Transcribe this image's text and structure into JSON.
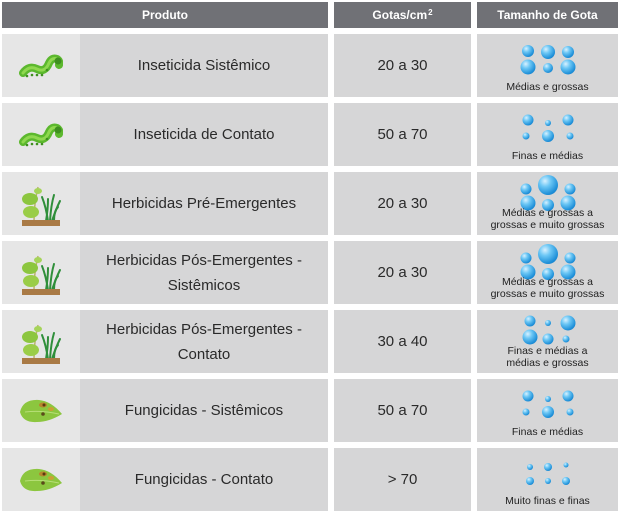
{
  "header": {
    "produto": "Produto",
    "gotas": "Gotas/cm",
    "gotas_sup": "2",
    "tamanho": "Tamanho de Gota"
  },
  "colors": {
    "header_bg": "#707176",
    "cell_bg": "#d6d6d7",
    "icon_bg": "#e6e6e6",
    "drop_blue": "#1e8fd8"
  },
  "rows": [
    {
      "icon": "caterpillar-icon",
      "produto": "Inseticida Sistêmico",
      "gotas": "20 a 30",
      "tamanho": "Médias e grossas",
      "drops": "medium-coarse"
    },
    {
      "icon": "caterpillar-icon",
      "produto": "Inseticida de Contato",
      "gotas": "50 a 70",
      "tamanho": "Finas e médias",
      "drops": "fine-medium"
    },
    {
      "icon": "weed-plant-icon",
      "produto": "Herbicidas Pré-Emergentes",
      "gotas": "20 a 30",
      "tamanho": "Médias e grossas a grossas e muito grossas",
      "drops": "coarse-very-coarse"
    },
    {
      "icon": "weed-plant-icon",
      "produto": "Herbicidas Pós-Emergentes - Sistêmicos",
      "gotas": "20 a 30",
      "tamanho": "Médias e grossas a grossas e muito grossas",
      "drops": "coarse-very-coarse"
    },
    {
      "icon": "weed-plant-icon",
      "produto": "Herbicidas Pós-Emergentes - Contato",
      "gotas": "30 a 40",
      "tamanho": "Finas e médias a médias e grossas",
      "drops": "fine-coarse"
    },
    {
      "icon": "diseased-leaf-icon",
      "produto": "Fungicidas - Sistêmicos",
      "gotas": "50 a 70",
      "tamanho": "Finas e médias",
      "drops": "fine-medium"
    },
    {
      "icon": "diseased-leaf-icon",
      "produto": "Fungicidas - Contato",
      "gotas": "> 70",
      "tamanho": "Muito finas e finas",
      "drops": "very-fine"
    }
  ]
}
